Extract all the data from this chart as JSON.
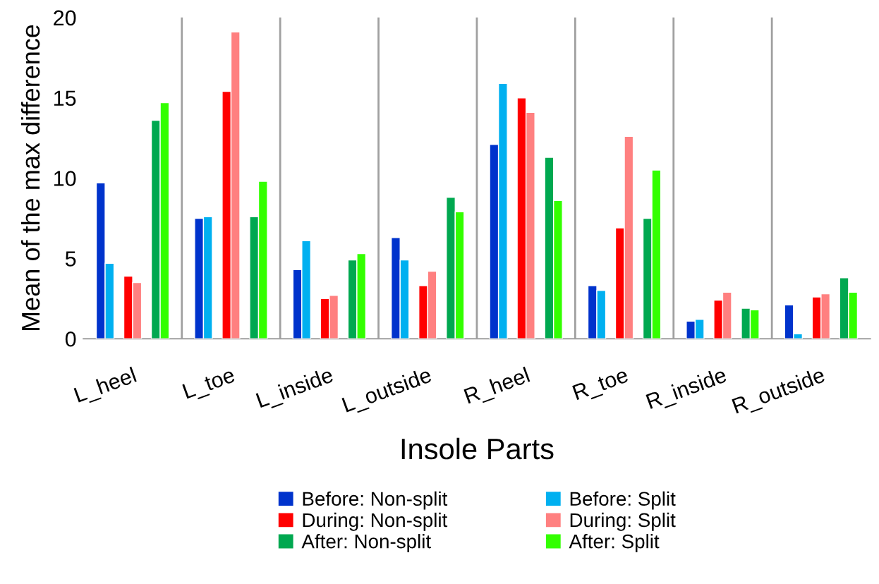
{
  "chart_data": {
    "type": "bar",
    "xlabel": "Insole Parts",
    "ylabel": "Mean of the max difference",
    "categories": [
      "L_heel",
      "L_toe",
      "L_inside",
      "L_outside",
      "R_heel",
      "R_toe",
      "R_inside",
      "R_outside"
    ],
    "ylim": [
      0,
      20
    ],
    "yticks": [
      0,
      5,
      10,
      15,
      20
    ],
    "grid": "x",
    "legend": "bottom",
    "series": [
      {
        "name": "Before: Non-split",
        "color": "#0033cc",
        "values": [
          9.7,
          7.5,
          4.3,
          6.3,
          12.1,
          3.3,
          1.1,
          2.1
        ]
      },
      {
        "name": "Before: Split",
        "color": "#00b0f0",
        "values": [
          4.7,
          7.6,
          6.1,
          4.9,
          15.9,
          3.0,
          1.2,
          0.3
        ]
      },
      {
        "name": "During: Non-split",
        "color": "#ff0000",
        "values": [
          3.9,
          15.4,
          2.5,
          3.3,
          15.0,
          6.9,
          2.4,
          2.6
        ]
      },
      {
        "name": "During: Split",
        "color": "#ff8080",
        "values": [
          3.5,
          19.1,
          2.7,
          4.2,
          14.1,
          12.6,
          2.9,
          2.8
        ]
      },
      {
        "name": "After: Non-split",
        "color": "#00a850",
        "values": [
          13.6,
          7.6,
          4.9,
          8.8,
          11.3,
          7.5,
          1.9,
          3.8
        ]
      },
      {
        "name": "After: Split",
        "color": "#33ff00",
        "values": [
          14.7,
          9.8,
          5.3,
          7.9,
          8.6,
          10.5,
          1.8,
          2.9
        ]
      }
    ]
  }
}
